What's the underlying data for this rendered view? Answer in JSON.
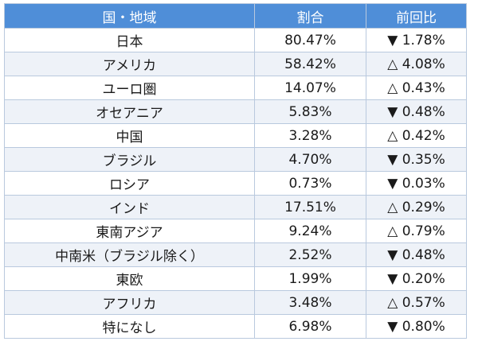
{
  "headers": {
    "region": "国・地域",
    "share": "割合",
    "change": "前回比"
  },
  "rows": [
    {
      "region": "日本",
      "share": "80.47%",
      "change": "▼ 1.78%"
    },
    {
      "region": "アメリカ",
      "share": "58.42%",
      "change": "△ 4.08%"
    },
    {
      "region": "ユーロ圏",
      "share": "14.07%",
      "change": "△ 0.43%"
    },
    {
      "region": "オセアニア",
      "share": "5.83%",
      "change": "▼ 0.48%"
    },
    {
      "region": "中国",
      "share": "3.28%",
      "change": "△ 0.42%"
    },
    {
      "region": "ブラジル",
      "share": "4.70%",
      "change": "▼ 0.35%"
    },
    {
      "region": "ロシア",
      "share": "0.73%",
      "change": "▼ 0.03%"
    },
    {
      "region": "インド",
      "share": "17.51%",
      "change": "△ 0.29%"
    },
    {
      "region": "東南アジア",
      "share": "9.24%",
      "change": "△ 0.79%"
    },
    {
      "region": "中南米（ブラジル除く）",
      "share": "2.52%",
      "change": "▼ 0.48%"
    },
    {
      "region": "東欧",
      "share": "1.99%",
      "change": "▼ 0.20%"
    },
    {
      "region": "アフリカ",
      "share": "3.48%",
      "change": "△ 0.57%"
    },
    {
      "region": "特になし",
      "share": "6.98%",
      "change": "▼ 0.80%"
    }
  ]
}
